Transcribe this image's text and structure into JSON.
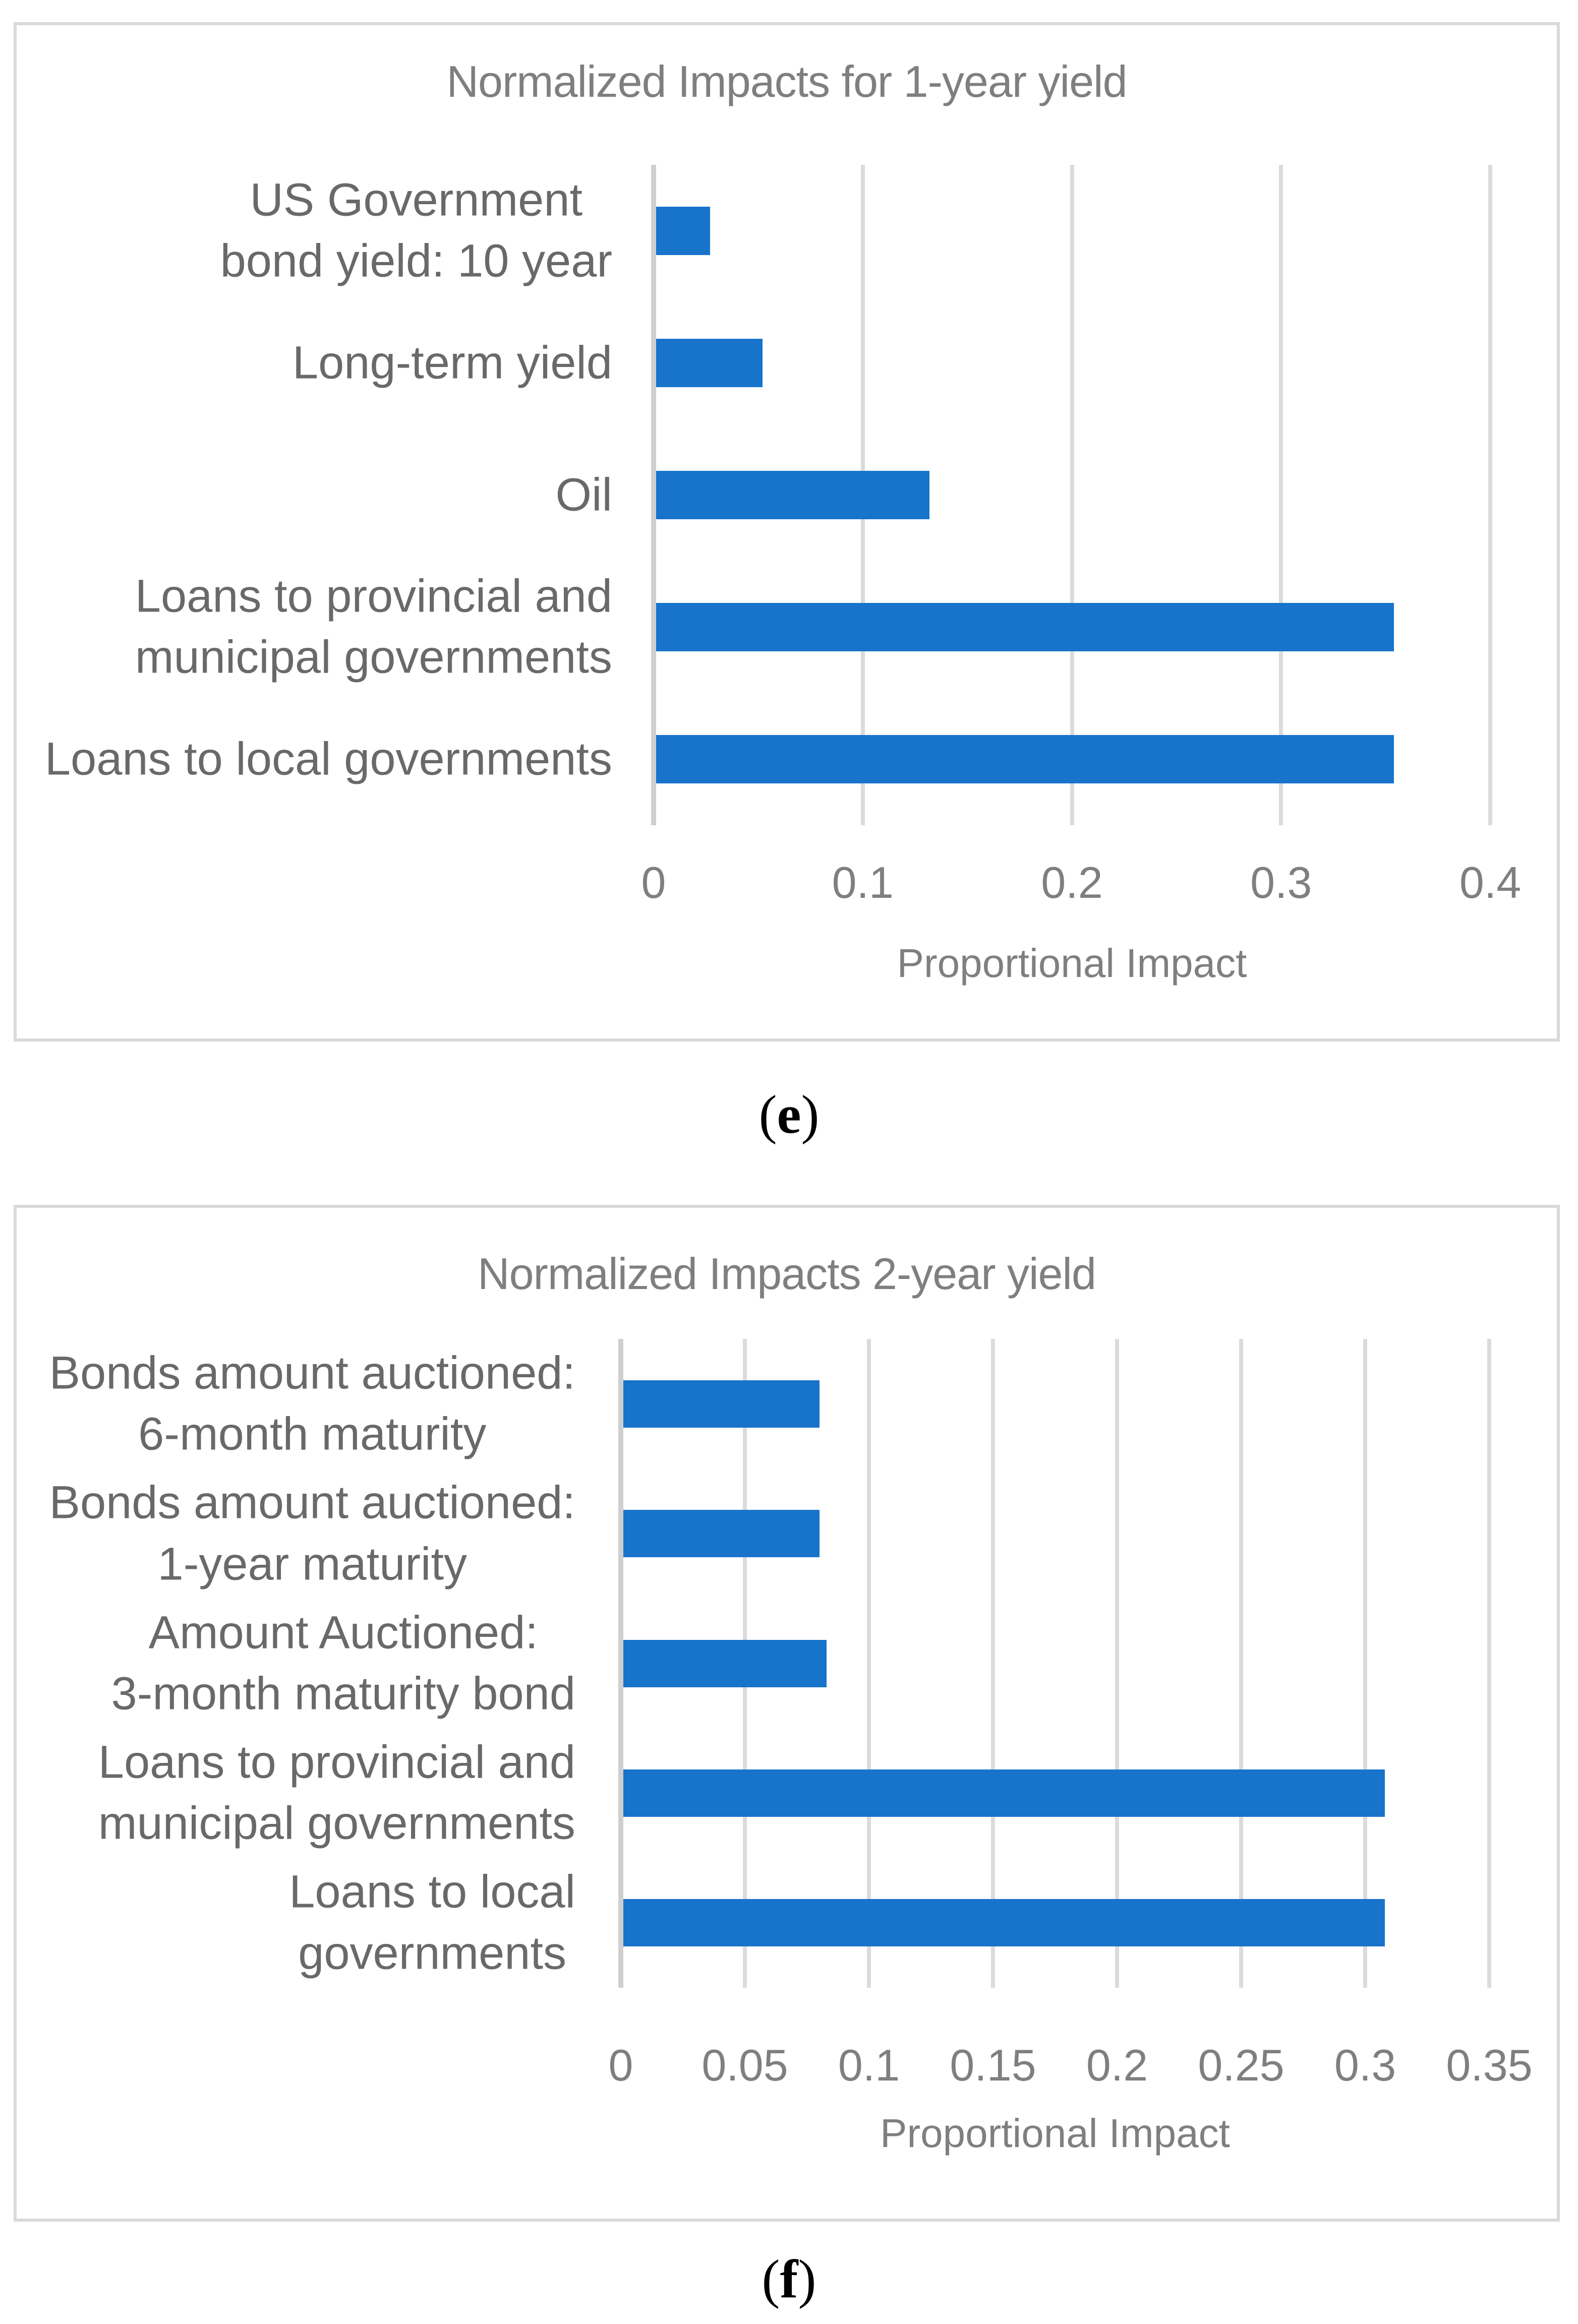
{
  "page": {
    "background": "#ffffff"
  },
  "captions": {
    "e": {
      "open": "(",
      "letter": "e",
      "close": ")"
    },
    "f": {
      "open": "(",
      "letter": "f",
      "close": ")"
    }
  },
  "colors": {
    "bar_fill": "#1873CB",
    "gridline": "#DBDBDB",
    "axis_line": "#CFCFCF",
    "chart_border": "#D9D9D9",
    "title_text": "#7F7F7F",
    "category_text": "#696969",
    "tick_text": "#7F7F7F",
    "axis_title_text": "#7F7F7F",
    "caption_text": "#000000"
  },
  "chart_data": [
    {
      "type": "bar",
      "orientation": "horizontal",
      "title": "Normalized Impacts for 1-year yield",
      "xlabel": "Proportional Impact",
      "ylabel": "",
      "categories": [
        "US Government\nbond yield: 10 year",
        "Long-term yield",
        "Oil",
        "Loans to provincial and\nmunicipal governments",
        "Loans to local governments"
      ],
      "values": [
        0.027,
        0.052,
        0.132,
        0.354,
        0.354
      ],
      "xlim": [
        0,
        0.4
      ],
      "xticks": [
        0,
        0.1,
        0.2,
        0.3,
        0.4
      ],
      "xtick_labels": [
        "0",
        "0.1",
        "0.2",
        "0.3",
        "0.4"
      ],
      "grid": true,
      "legend": false
    },
    {
      "type": "bar",
      "orientation": "horizontal",
      "title": "Normalized Impacts 2-year yield",
      "xlabel": "Proportional Impact",
      "ylabel": "",
      "categories": [
        "Bonds amount auctioned:\n6-month maturity",
        "Bonds amount auctioned:\n1-year maturity",
        "Amount Auctioned:\n3-month maturity bond",
        "Loans to provincial and\nmunicipal governments",
        "Loans to local\ngovernments"
      ],
      "values": [
        0.08,
        0.08,
        0.083,
        0.308,
        0.308
      ],
      "xlim": [
        0,
        0.35
      ],
      "xticks": [
        0,
        0.05,
        0.1,
        0.15,
        0.2,
        0.25,
        0.3,
        0.35
      ],
      "xtick_labels": [
        "0",
        "0.05",
        "0.1",
        "0.15",
        "0.2",
        "0.25",
        "0.3",
        "0.35"
      ],
      "grid": true,
      "legend": false
    }
  ]
}
